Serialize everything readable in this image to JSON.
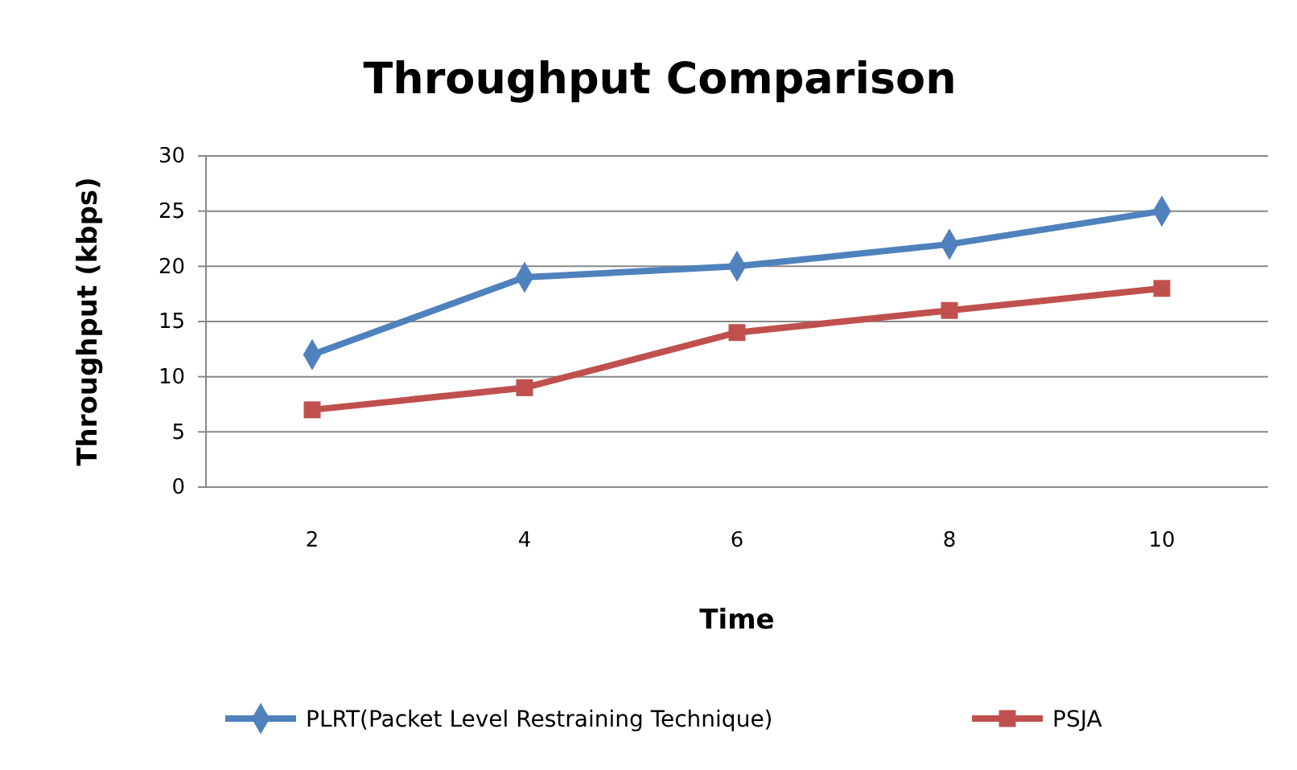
{
  "chart_data": {
    "type": "line",
    "title": "Throughput Comparison",
    "xlabel": "Time",
    "ylabel": "Throughput (kbps)",
    "categories": [
      "2",
      "4",
      "6",
      "8",
      "10"
    ],
    "series": [
      {
        "name": "PLRT(Packet Level Restraining Technique)",
        "color": "#4f81bd",
        "marker": "diamond",
        "values": [
          12,
          19,
          20,
          22,
          25
        ]
      },
      {
        "name": "PSJA",
        "color": "#c0504d",
        "marker": "square",
        "values": [
          7,
          9,
          14,
          16,
          18
        ]
      }
    ],
    "ylim": [
      0,
      30
    ],
    "yticks": [
      0,
      5,
      10,
      15,
      20,
      25,
      30
    ],
    "grid": "y",
    "legend": "bottom",
    "line_style": "solid"
  }
}
